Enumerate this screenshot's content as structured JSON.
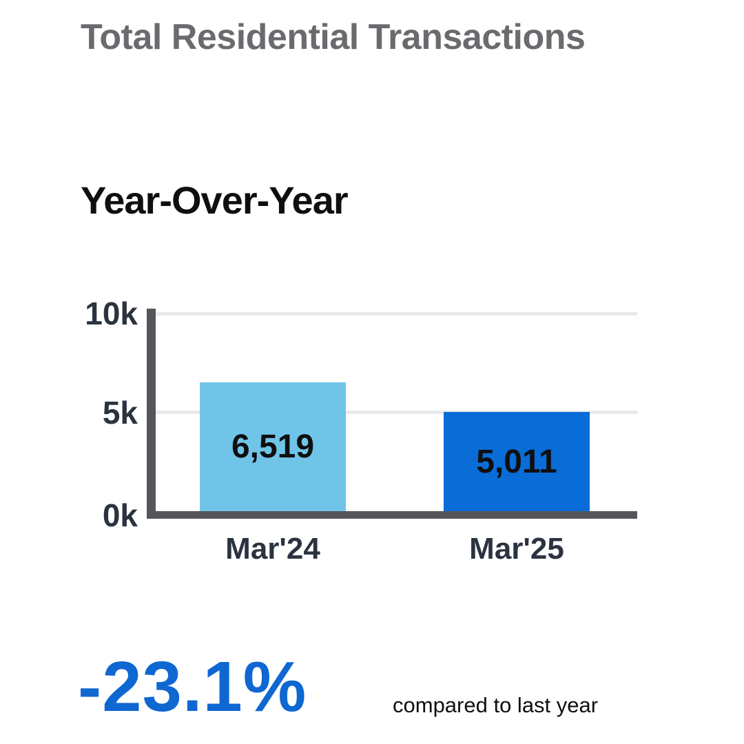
{
  "header": {
    "title": "Total Residential Transactions"
  },
  "section": {
    "heading": "Year-Over-Year"
  },
  "chart_data": {
    "type": "bar",
    "title": "Year-Over-Year",
    "categories": [
      "Mar'24",
      "Mar'25"
    ],
    "values": [
      6519,
      5011
    ],
    "value_labels": [
      "6,519",
      "5,011"
    ],
    "bar_colors": [
      "#70c4e8",
      "#0a6cd6"
    ],
    "xlabel": "",
    "ylabel": "",
    "ylim": [
      0,
      10000
    ],
    "yticks": [
      {
        "value": 0,
        "label": "0k"
      },
      {
        "value": 5000,
        "label": "5k"
      },
      {
        "value": 10000,
        "label": "10k"
      }
    ],
    "grid": true,
    "legend": "none",
    "colors": {
      "axis": "#55565a",
      "gridline": "#e9e9eb",
      "tick_text": "#2b3340",
      "bar_label_text": "#0f0f10"
    }
  },
  "footer": {
    "change_percent": "-23.1%",
    "caption": "compared to last year",
    "accent_color": "#0f67d2"
  }
}
